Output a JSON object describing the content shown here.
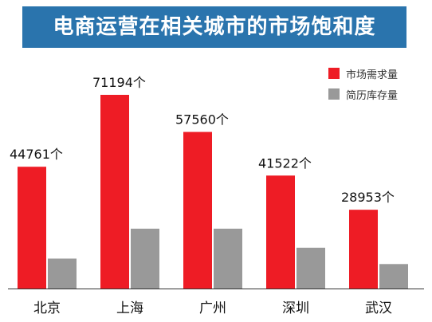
{
  "title": "电商运营在相关城市的市场饱和度",
  "chart_data": {
    "type": "bar",
    "categories": [
      "北京",
      "上海",
      "广州",
      "深圳",
      "武汉"
    ],
    "series": [
      {
        "name": "市场需求量",
        "color": "#ee1c25",
        "values": [
          44761,
          71194,
          57560,
          41522,
          28953
        ],
        "labels": [
          "44761个",
          "71194个",
          "57560个",
          "41522个",
          "28953个"
        ]
      },
      {
        "name": "简历库存量",
        "color": "#999999",
        "values": [
          11000,
          22000,
          22000,
          15000,
          9000
        ]
      }
    ],
    "ylim": [
      0,
      75000
    ],
    "grid": false,
    "legend": "top-right"
  }
}
